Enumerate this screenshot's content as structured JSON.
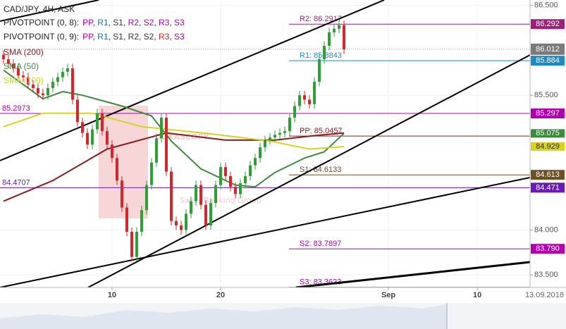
{
  "chart_data": {
    "type": "candlestick",
    "title": "CAD/JPY, 4H, ASK",
    "watermark": [
      "DUKASCOPY",
      "Swiss Banking Group"
    ],
    "date_stamp": "13.09.2018",
    "up_color": "#2f9e36",
    "down_color": "#d3262a",
    "ylim": [
      83.36,
      86.56
    ],
    "yticks": [
      {
        "value": 86.5,
        "label": "86.500"
      },
      {
        "value": 85.5,
        "label": "85.500"
      },
      {
        "value": 84,
        "label": "84.000"
      },
      {
        "value": 83.5,
        "label": "83.500"
      }
    ],
    "xlim": [
      -0.7,
      106.7
    ],
    "xticks": [
      {
        "value": 22,
        "label": "10"
      },
      {
        "value": 44,
        "label": "20"
      },
      {
        "value": 78,
        "label": "Sep"
      },
      {
        "value": 96,
        "label": "10"
      }
    ],
    "grid": true,
    "pivot_legends": [
      {
        "name": "PIVOTPOINT (0, 8):",
        "items": [
          {
            "text": "PP",
            "color": "#b000b0"
          },
          {
            "text": "R1",
            "color": "#1a6fc0"
          },
          {
            "text": "S1",
            "color": "#333333"
          },
          {
            "text": "R2",
            "color": "#b000b0"
          },
          {
            "text": "S2",
            "color": "#b000b0"
          },
          {
            "text": "R3",
            "color": "#b000b0"
          },
          {
            "text": "S3",
            "color": "#b000b0"
          }
        ]
      },
      {
        "name": "PIVOTPOINT (0, 9):",
        "items": [
          {
            "text": "PP",
            "color": "#b000b0"
          },
          {
            "text": "R1",
            "color": "#1a6fc0"
          },
          {
            "text": "S1",
            "color": "#333333"
          },
          {
            "text": "R2",
            "color": "#333333"
          },
          {
            "text": "S2",
            "color": "#333333"
          },
          {
            "text": "R3",
            "color": "#d3262a"
          },
          {
            "text": "S3",
            "color": "#b000b0"
          }
        ]
      }
    ],
    "candles": {
      "open": [
        85.95,
        85.9,
        85.85,
        85.8,
        85.72,
        85.7,
        85.62,
        85.58,
        85.52,
        85.5,
        85.58,
        85.65,
        85.7,
        85.76,
        85.8,
        85.45,
        85.2,
        85.08,
        84.95,
        85.12,
        85.3,
        85.1,
        84.95,
        84.8,
        84.55,
        84.25,
        83.98,
        83.7,
        83.98,
        84.22,
        84.5,
        84.75,
        85.02,
        85.25,
        84.65,
        84.1,
        84.05,
        84.0,
        84.18,
        84.32,
        84.5,
        84.28,
        84.05,
        84.3,
        84.5,
        84.7,
        84.6,
        84.48,
        84.4,
        84.52,
        84.6,
        84.72,
        84.8,
        84.92,
        85.0,
        85.03,
        85.06,
        85.08,
        85.1,
        85.25,
        85.38,
        85.5,
        85.45,
        85.4,
        85.65,
        85.9,
        86.05,
        86.2,
        86.24,
        86.28
      ],
      "high": [
        86.0,
        85.95,
        85.9,
        85.85,
        85.77,
        85.75,
        85.67,
        85.63,
        85.57,
        85.63,
        85.7,
        85.75,
        85.81,
        85.85,
        85.85,
        85.5,
        85.25,
        85.13,
        85.17,
        85.35,
        85.35,
        85.15,
        85.0,
        84.85,
        84.6,
        84.3,
        84.03,
        84.03,
        84.27,
        84.55,
        84.8,
        85.07,
        85.3,
        85.3,
        84.7,
        84.15,
        84.1,
        84.23,
        84.37,
        84.55,
        84.55,
        84.33,
        84.35,
        84.55,
        84.75,
        84.75,
        84.65,
        84.53,
        84.57,
        84.65,
        84.77,
        84.85,
        84.97,
        85.05,
        85.08,
        85.11,
        85.13,
        85.15,
        85.3,
        85.43,
        85.55,
        85.55,
        85.5,
        85.7,
        85.95,
        86.1,
        86.25,
        86.29,
        86.33,
        86.33
      ],
      "low": [
        85.85,
        85.8,
        85.75,
        85.67,
        85.65,
        85.57,
        85.53,
        85.47,
        85.45,
        85.45,
        85.53,
        85.6,
        85.65,
        85.71,
        85.4,
        85.15,
        85.03,
        84.9,
        84.9,
        85.07,
        85.05,
        84.9,
        84.75,
        84.5,
        84.2,
        83.93,
        83.65,
        83.65,
        83.93,
        84.17,
        84.45,
        84.7,
        84.97,
        84.6,
        84.05,
        84.0,
        83.95,
        83.95,
        84.13,
        84.27,
        84.23,
        84.0,
        84.0,
        84.25,
        84.45,
        84.55,
        84.43,
        84.35,
        84.35,
        84.47,
        84.55,
        84.67,
        84.75,
        84.87,
        84.95,
        84.98,
        85.01,
        85.03,
        85.05,
        85.2,
        85.33,
        85.4,
        85.35,
        85.35,
        85.6,
        85.85,
        86.0,
        86.15,
        86.19,
        85.96
      ],
      "close": [
        85.9,
        85.85,
        85.8,
        85.72,
        85.7,
        85.62,
        85.58,
        85.52,
        85.5,
        85.58,
        85.65,
        85.7,
        85.76,
        85.8,
        85.45,
        85.2,
        85.08,
        84.95,
        85.12,
        85.3,
        85.1,
        84.95,
        84.8,
        84.55,
        84.25,
        83.98,
        83.7,
        83.98,
        84.22,
        84.5,
        84.75,
        85.02,
        85.25,
        84.65,
        84.1,
        84.05,
        84.0,
        84.18,
        84.32,
        84.5,
        84.28,
        84.05,
        84.3,
        84.5,
        84.7,
        84.6,
        84.48,
        84.4,
        84.52,
        84.6,
        84.72,
        84.8,
        84.92,
        85.0,
        85.03,
        85.06,
        85.08,
        85.1,
        85.25,
        85.38,
        85.5,
        85.45,
        85.4,
        85.65,
        85.9,
        86.05,
        86.2,
        86.24,
        86.28,
        86.012
      ],
      "last_label": "86.012",
      "last_color": "#7a7a7a"
    },
    "series": [
      {
        "name": "SMA (200)",
        "color": "#8b1c1c",
        "x": [
          0,
          10,
          21,
          33,
          45,
          55,
          63,
          69
        ],
        "values": [
          84.32,
          84.55,
          84.9,
          85.08,
          85.0,
          85.0,
          85.05,
          85.08
        ]
      },
      {
        "name": "SMA (50)",
        "color": "#3c8a3c",
        "x": [
          0,
          8,
          12,
          16,
          24,
          30,
          34,
          40,
          47,
          51,
          55,
          61,
          65,
          69
        ],
        "values": [
          85.78,
          85.46,
          85.54,
          85.5,
          85.38,
          85.27,
          84.99,
          84.68,
          84.5,
          84.48,
          84.64,
          84.8,
          84.87,
          85.075
        ],
        "last_label": "85.075"
      },
      {
        "name": "SMA (100)",
        "color": "#d6d21e",
        "x": [
          0,
          8,
          18,
          28,
          42,
          54,
          62,
          69
        ],
        "values": [
          85.15,
          85.3,
          85.3,
          85.15,
          85.07,
          84.99,
          84.9,
          84.929
        ],
        "last_label": "84.929"
      }
    ],
    "levels": [
      {
        "value": 86.2917,
        "label": "R2: 86.2917",
        "axis_label": "86.292",
        "color": "#a0207a",
        "side": "right"
      },
      {
        "value": 85.8843,
        "label": "R1: 85.8843",
        "axis_label": "85.884",
        "color": "#1f8ac0",
        "side": "right"
      },
      {
        "value": 85.2973,
        "label": "85.2973",
        "axis_label": "85.297",
        "color": "#b000b0",
        "side": "left"
      },
      {
        "value": 85.0457,
        "label": "PP: 85.0457",
        "color": "#8b1c1c",
        "side": "right"
      },
      {
        "value": 84.6133,
        "label": "S1: 84.6133",
        "axis_label": "84.613",
        "color": "#6e4f22",
        "side": "right"
      },
      {
        "value": 84.4707,
        "label": "84.4707",
        "axis_label": "84.471",
        "color": "#6a1ab0",
        "side": "left"
      },
      {
        "value": 83.7897,
        "label": "S2: 83.7897",
        "axis_label": "83.790",
        "color": "#b000b0",
        "side": "right"
      },
      {
        "value": 83.3623,
        "label": "S3: 83.3623",
        "color": "#b000b0",
        "side": "right"
      }
    ]
  }
}
